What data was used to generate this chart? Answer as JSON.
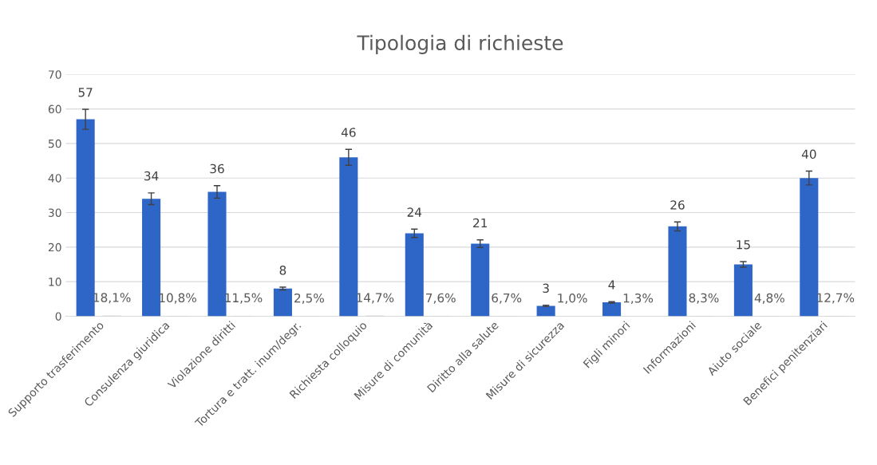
{
  "chart_data": {
    "type": "bar",
    "title": "Tipologia di richieste",
    "categories": [
      "Supporto trasferimento",
      "Consulenza giuridica",
      "Violazione diritti",
      "Tortura e tratt. inum/degr.",
      "Richiesta colloquio",
      "Misure di comunità",
      "Diritto alla salute",
      "Misure di sicurezza",
      "Figli minori",
      "Informazioni",
      "Aiuto sociale",
      "Benefici penitenziari"
    ],
    "series": [
      {
        "color": "#2e66c8",
        "values": [
          57,
          34,
          36,
          8,
          46,
          24,
          21,
          3,
          4,
          26,
          15,
          40
        ],
        "errors": [
          2.9,
          1.7,
          1.8,
          0.4,
          2.3,
          1.2,
          1.1,
          0.2,
          0.2,
          1.3,
          0.8,
          2.0
        ],
        "data_labels": true
      },
      {
        "color": "#bfbfbf",
        "values": [
          0.181,
          0.108,
          0.115,
          0.025,
          0.147,
          0.076,
          0.067,
          0.01,
          0.013,
          0.083,
          0.048,
          0.127
        ],
        "value_labels": [
          "18,1%",
          "10,8%",
          "11,5%",
          "2,5%",
          "14,7%",
          "7,6%",
          "6,7%",
          "1,0%",
          "1,3%",
          "8,3%",
          "4,8%",
          "12,7%"
        ]
      }
    ],
    "ylim": [
      0,
      70
    ],
    "yticks": [
      0,
      10,
      20,
      30,
      40,
      50,
      60,
      70
    ],
    "grid": "y",
    "legend": false
  }
}
